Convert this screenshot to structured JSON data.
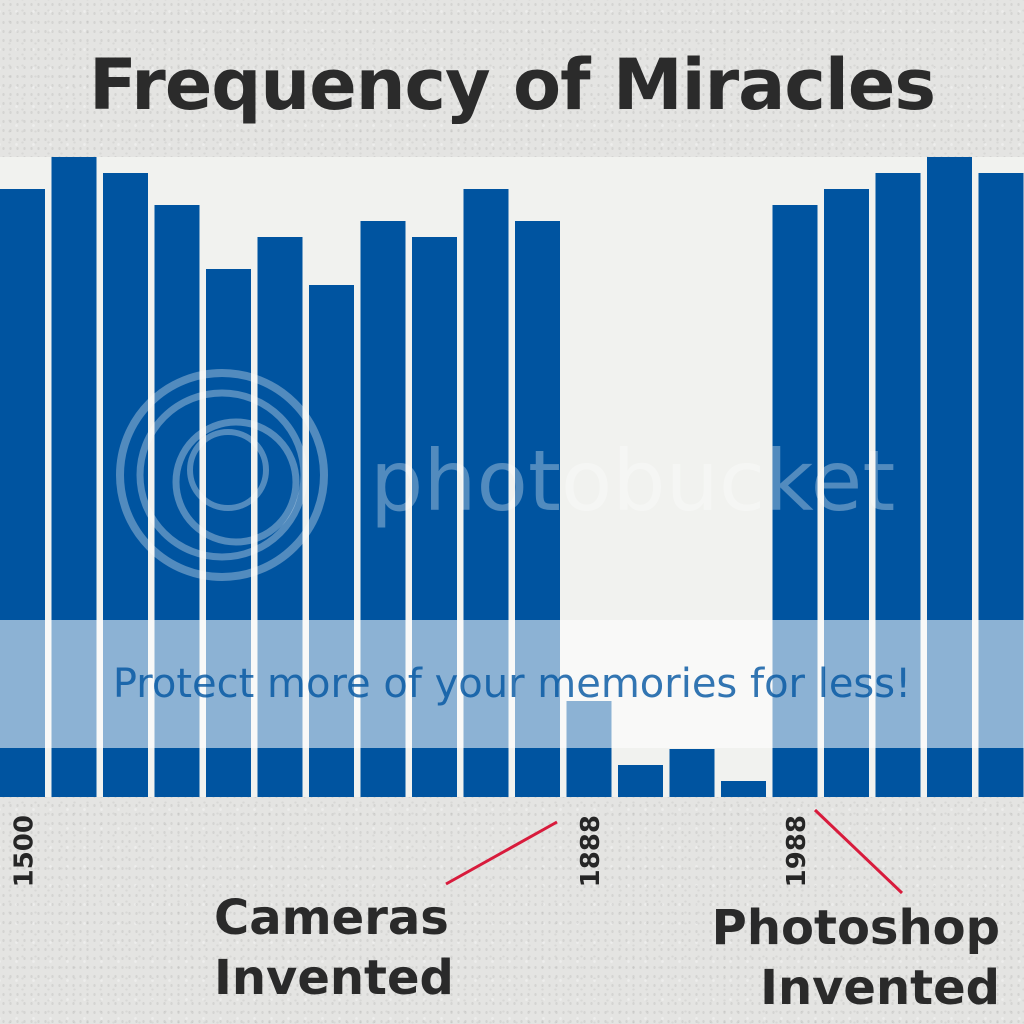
{
  "chart_data": {
    "type": "bar",
    "title": "Frequency of Miracles",
    "xlabel": "",
    "ylabel": "",
    "ylim": [
      0,
      40
    ],
    "grid": false,
    "legend": "none",
    "bar_color": "#0054a0",
    "plot_background": "#f1f2ef",
    "categories": [
      "1500",
      "",
      "",
      "",
      "",
      "",
      "",
      "",
      "",
      "",
      "",
      "1888",
      "",
      "",
      "",
      "1988",
      "",
      "",
      "",
      ""
    ],
    "values": [
      38,
      40,
      39,
      37,
      33,
      35,
      32,
      36,
      35,
      38,
      36,
      6,
      2,
      3,
      1,
      37,
      38,
      39,
      40,
      39
    ],
    "tick_labels": [
      {
        "index": 0,
        "label": "1500"
      },
      {
        "index": 11,
        "label": "1888"
      },
      {
        "index": 15,
        "label": "1988"
      }
    ],
    "annotations": [
      {
        "name": "cameras",
        "lines": [
          "Cameras",
          "Invented"
        ],
        "at_index": 11,
        "color": "#d81b3c"
      },
      {
        "name": "photoshop",
        "lines": [
          "Photoshop",
          "Invented"
        ],
        "at_index": 15,
        "color": "#d81b3c"
      }
    ]
  },
  "watermark": {
    "brand": "photobucket",
    "banner": "Protect more of your memories for less!"
  }
}
